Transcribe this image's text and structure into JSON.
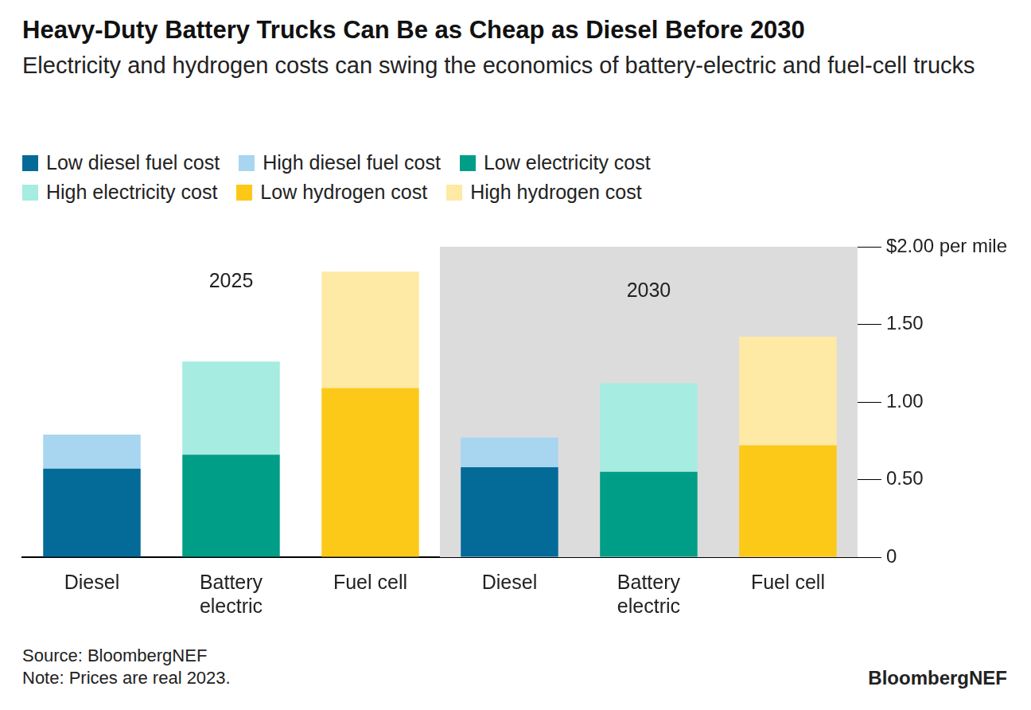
{
  "chart_data": {
    "type": "bar",
    "title": "Heavy-Duty Battery Trucks Can Be as Cheap as Diesel Before 2030",
    "subtitle": "Electricity and hydrogen costs can swing the economics of battery-electric and fuel-cell trucks",
    "categories": [
      "Diesel",
      "Battery electric",
      "Fuel cell",
      "Diesel",
      "Battery electric",
      "Fuel cell"
    ],
    "groups": [
      {
        "label": "2025",
        "count": 3
      },
      {
        "label": "2030",
        "count": 3
      }
    ],
    "series": [
      {
        "name": "Low diesel fuel cost",
        "color": "#046b99",
        "values": [
          0.57,
          null,
          null,
          0.58,
          null,
          null
        ]
      },
      {
        "name": "High diesel fuel cost",
        "color": "#a8d5ef",
        "values": [
          0.22,
          null,
          null,
          0.19,
          null,
          null
        ]
      },
      {
        "name": "Low electricity cost",
        "color": "#009e86",
        "values": [
          null,
          0.66,
          null,
          null,
          0.55,
          null
        ]
      },
      {
        "name": "High electricity cost",
        "color": "#a6ece0",
        "values": [
          null,
          0.6,
          null,
          null,
          0.57,
          null
        ]
      },
      {
        "name": "Low hydrogen cost",
        "color": "#fdc918",
        "values": [
          null,
          null,
          1.09,
          null,
          null,
          0.72
        ]
      },
      {
        "name": "High hydrogen cost",
        "color": "#fee9a5",
        "values": [
          null,
          null,
          0.75,
          null,
          null,
          0.7
        ]
      }
    ],
    "ylim": [
      0,
      2
    ],
    "yticks": [
      0,
      {
        "value": 0.5,
        "label": "0.50"
      },
      {
        "value": 1,
        "label": "1.00"
      },
      {
        "value": 1.5,
        "label": "1.50"
      },
      {
        "value": 2,
        "label": "$2.00 per mile"
      }
    ],
    "stacked": true,
    "grid": false,
    "legend": "top-left",
    "data_labels": false,
    "source": "Source: BloombergNEF",
    "note": "Note: Prices are real 2023.",
    "logo": "BloombergNEF"
  }
}
